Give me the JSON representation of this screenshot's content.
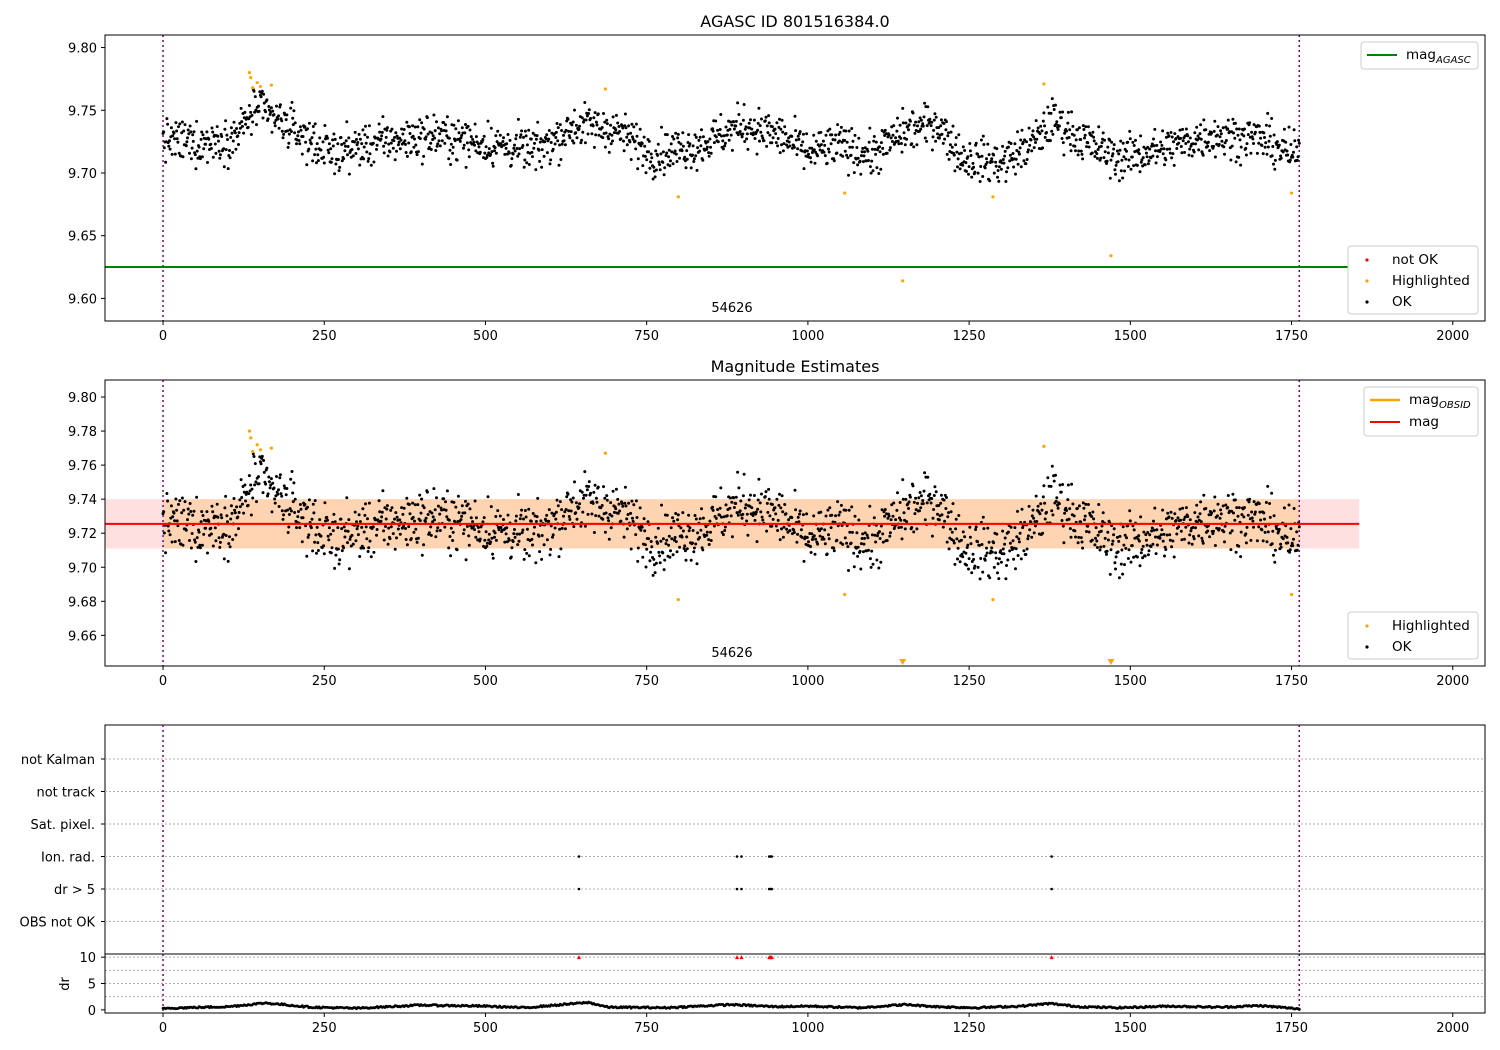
{
  "chart_data": [
    {
      "type": "scatter",
      "title": "AGASC ID 801516384.0",
      "xlim": [
        -90,
        2050
      ],
      "ylim": [
        9.582,
        9.81
      ],
      "xticks": [
        "0",
        "250",
        "500",
        "750",
        "1000",
        "1250",
        "1500",
        "1750",
        "2000"
      ],
      "yticks": [
        "9.60",
        "9.65",
        "9.70",
        "9.75",
        "9.80"
      ],
      "obsid_label": "54626",
      "obs_boundaries": [
        0,
        1762
      ],
      "hlines": [
        {
          "name": "mag_AGASC",
          "y": 9.625,
          "color": "#008000"
        }
      ],
      "legend_lines": [
        {
          "label": "mag",
          "sub": "AGASC",
          "color": "#008000"
        }
      ],
      "legend_points": [
        {
          "label": "not OK",
          "color": "#ff0000"
        },
        {
          "label": "Highlighted",
          "color": "#ffa500"
        },
        {
          "label": "OK",
          "color": "#000000"
        }
      ],
      "ok_points": "magnitude series, ~1760 points, x 0-1762, mean ~9.725",
      "highlighted_points": [
        [
          134,
          9.78
        ],
        [
          136,
          9.776
        ],
        [
          139,
          9.768
        ],
        [
          146,
          9.772
        ],
        [
          151,
          9.769
        ],
        [
          168,
          9.77
        ],
        [
          686,
          9.767
        ],
        [
          799,
          9.681
        ],
        [
          1057,
          9.684
        ],
        [
          1147,
          9.614
        ],
        [
          1287,
          9.681
        ],
        [
          1366,
          9.771
        ],
        [
          1470,
          9.634
        ],
        [
          1750,
          9.684
        ]
      ]
    },
    {
      "type": "scatter",
      "title": "Magnitude Estimates",
      "xlim": [
        -90,
        2050
      ],
      "ylim": [
        9.642,
        9.81
      ],
      "xticks": [
        "0",
        "250",
        "500",
        "750",
        "1000",
        "1250",
        "1500",
        "1750",
        "2000"
      ],
      "yticks": [
        "9.66",
        "9.68",
        "9.70",
        "9.72",
        "9.74",
        "9.76",
        "9.78",
        "9.80"
      ],
      "obsid_label": "54626",
      "obs_boundaries": [
        0,
        1762
      ],
      "bands": [
        {
          "name": "mag_OBSID",
          "x": [
            0,
            1762
          ],
          "y": [
            9.711,
            9.74
          ],
          "color": "#ffa500"
        },
        {
          "name": "mag",
          "x": [
            -90,
            1855
          ],
          "y": [
            9.711,
            9.74
          ],
          "color": "#ff0000"
        }
      ],
      "hlines": [
        {
          "name": "mag_OBSID",
          "x": [
            0,
            1762
          ],
          "y": 9.7255,
          "color": "#ffa500"
        },
        {
          "name": "mag",
          "x": [
            -90,
            1855
          ],
          "y": 9.7255,
          "color": "#ff0000"
        }
      ],
      "legend_lines": [
        {
          "label": "mag",
          "sub": "OBSID",
          "color": "#ffa500"
        },
        {
          "label": "mag",
          "sub": "",
          "color": "#ff0000"
        }
      ],
      "legend_points": [
        {
          "label": "Highlighted",
          "color": "#ffa500"
        },
        {
          "label": "OK",
          "color": "#000000"
        }
      ],
      "out_of_range_markers": [
        1147,
        1470
      ]
    },
    {
      "type": "scatter",
      "title": "",
      "xlim": [
        -90,
        2050
      ],
      "categories": [
        "not Kalman",
        "not track",
        "Sat. pixel.",
        "Ion. rad.",
        "dr > 5",
        "OBS not OK"
      ],
      "flags": {
        "Ion. rad.": [
          645,
          890,
          897,
          940,
          942,
          944,
          1378
        ],
        "dr > 5": [
          645,
          890,
          897,
          940,
          942,
          944,
          1378
        ]
      }
    },
    {
      "type": "scatter",
      "title": "",
      "ylabel": "dr",
      "xlim": [
        -90,
        2050
      ],
      "ylim": [
        -0.6,
        10.6
      ],
      "xticks": [
        "0",
        "250",
        "500",
        "750",
        "1000",
        "1250",
        "1500",
        "1750",
        "2000"
      ],
      "yticks": [
        "0",
        "5",
        "10"
      ],
      "dr_flagged_x": [
        645,
        890,
        897,
        940,
        942,
        944,
        1378
      ],
      "dr_flagged_y": 10
    }
  ]
}
